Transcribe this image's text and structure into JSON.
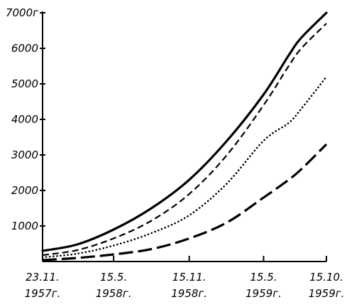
{
  "chart_data": {
    "type": "line",
    "title": "",
    "xlabel": "",
    "ylabel": "",
    "ylim": [
      0,
      7000
    ],
    "grid": false,
    "legend": "none",
    "y_ticks": [
      {
        "value": 7000,
        "label": "7000г"
      },
      {
        "value": 6000,
        "label": "6000"
      },
      {
        "value": 5000,
        "label": "5000"
      },
      {
        "value": 4000,
        "label": "4000"
      },
      {
        "value": 3000,
        "label": "3000"
      },
      {
        "value": 2000,
        "label": "2000"
      },
      {
        "value": 1000,
        "label": "1000"
      }
    ],
    "x_ticks": [
      {
        "date": "1957-11-23",
        "line1": "23.11.",
        "line2": "1957г."
      },
      {
        "date": "1958-05-15",
        "line1": "15.5.",
        "line2": "1958г."
      },
      {
        "date": "1958-11-15",
        "line1": "15.11.",
        "line2": "1958г."
      },
      {
        "date": "1959-05-15",
        "line1": "15.5.",
        "line2": "1959г."
      },
      {
        "date": "1959-10-15",
        "line1": "15.10.",
        "line2": "1959г."
      }
    ],
    "x": [
      "1957-11-23",
      "1958-02-15",
      "1958-05-15",
      "1958-08-15",
      "1958-11-15",
      "1959-02-15",
      "1959-05-15",
      "1959-07-15",
      "1959-08-15",
      "1959-10-15"
    ],
    "series": [
      {
        "style": "solid",
        "values": [
          300,
          480,
          900,
          1500,
          2300,
          3400,
          4700,
          5800,
          6300,
          7000
        ]
      },
      {
        "style": "dashed",
        "values": [
          180,
          320,
          650,
          1150,
          1900,
          3000,
          4400,
          5500,
          6000,
          6700
        ]
      },
      {
        "style": "dotted",
        "values": [
          120,
          220,
          450,
          800,
          1300,
          2200,
          3400,
          3900,
          4300,
          5200
        ]
      },
      {
        "style": "long-dash",
        "values": [
          40,
          100,
          200,
          350,
          650,
          1100,
          1800,
          2300,
          2600,
          3300
        ]
      }
    ]
  }
}
